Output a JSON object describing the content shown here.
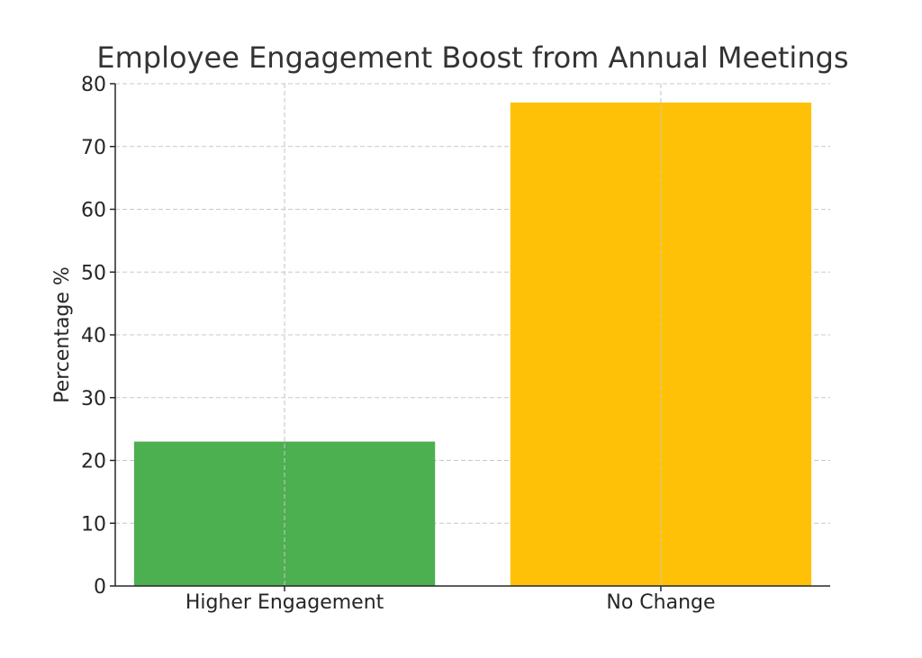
{
  "chart_data": {
    "type": "bar",
    "title": "Employee Engagement Boost from Annual Meetings",
    "xlabel": "",
    "ylabel": "Percentage %",
    "categories": [
      "Higher Engagement",
      "No Change"
    ],
    "values": [
      23,
      77
    ],
    "colors": [
      "#4caf50",
      "#ffc107"
    ],
    "ylim": [
      0,
      80
    ],
    "yticks": [
      0,
      10,
      20,
      30,
      40,
      50,
      60,
      70,
      80
    ],
    "grid": true,
    "legend": "none"
  }
}
